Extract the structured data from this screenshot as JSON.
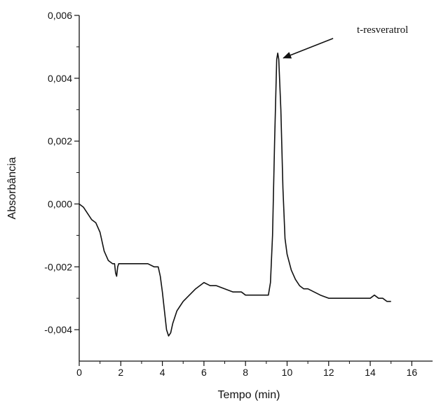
{
  "chart_data": {
    "type": "line",
    "title": "",
    "xlabel": "Tempo (min)",
    "ylabel": "Absorbância",
    "xlim": [
      0,
      17
    ],
    "ylim": [
      -0.005,
      0.006
    ],
    "x_ticks": [
      0,
      2,
      4,
      6,
      8,
      10,
      12,
      14,
      16
    ],
    "x_tick_labels": [
      "0",
      "2",
      "4",
      "6",
      "8",
      "10",
      "12",
      "14",
      "16"
    ],
    "y_ticks": [
      -0.004,
      -0.002,
      0.0,
      0.002,
      0.004,
      0.006
    ],
    "y_tick_labels": [
      "-0,004",
      "-0,002",
      "0,000",
      "0,002",
      "0,004",
      "0,006"
    ],
    "grid": false,
    "legend": "none",
    "colors": {
      "line": "#111111",
      "axis": "#111111",
      "arrow": "#111111"
    },
    "annotation": {
      "text": "t-resveratrol",
      "x": 9.65,
      "y": 0.0046
    },
    "series": [
      {
        "x": [
          0.0,
          0.2,
          0.4,
          0.6,
          0.8,
          1.0,
          1.2,
          1.4,
          1.6,
          1.7,
          1.75,
          1.8,
          1.85,
          1.9,
          2.0,
          2.2,
          2.5,
          2.8,
          3.0,
          3.3,
          3.6,
          3.8,
          3.9,
          4.0,
          4.1,
          4.2,
          4.3,
          4.4,
          4.5,
          4.7,
          5.0,
          5.3,
          5.6,
          5.8,
          6.0,
          6.3,
          6.6,
          7.0,
          7.4,
          7.8,
          8.0,
          8.3,
          8.6,
          8.9,
          9.0,
          9.1,
          9.2,
          9.3,
          9.4,
          9.5,
          9.55,
          9.6,
          9.7,
          9.8,
          9.9,
          10.0,
          10.2,
          10.4,
          10.6,
          10.8,
          11.0,
          11.3,
          11.6,
          12.0,
          12.5,
          13.0,
          13.5,
          14.0,
          14.2,
          14.4,
          14.6,
          14.8,
          15.0
        ],
        "y": [
          0.0,
          -0.0001,
          -0.0003,
          -0.0005,
          -0.0006,
          -0.0009,
          -0.0015,
          -0.0018,
          -0.0019,
          -0.0019,
          -0.0022,
          -0.0023,
          -0.002,
          -0.0019,
          -0.0019,
          -0.0019,
          -0.0019,
          -0.0019,
          -0.0019,
          -0.0019,
          -0.002,
          -0.002,
          -0.0023,
          -0.0028,
          -0.0034,
          -0.004,
          -0.0042,
          -0.0041,
          -0.0038,
          -0.0034,
          -0.0031,
          -0.0029,
          -0.0027,
          -0.0026,
          -0.0025,
          -0.0026,
          -0.0026,
          -0.0027,
          -0.0028,
          -0.0028,
          -0.0029,
          -0.0029,
          -0.0029,
          -0.0029,
          -0.0029,
          -0.0029,
          -0.0025,
          -0.001,
          0.002,
          0.0046,
          0.0048,
          0.0046,
          0.003,
          0.0005,
          -0.0011,
          -0.0016,
          -0.0021,
          -0.0024,
          -0.0026,
          -0.0027,
          -0.0027,
          -0.0028,
          -0.0029,
          -0.003,
          -0.003,
          -0.003,
          -0.003,
          -0.003,
          -0.0029,
          -0.003,
          -0.003,
          -0.0031,
          -0.0031
        ]
      }
    ]
  }
}
